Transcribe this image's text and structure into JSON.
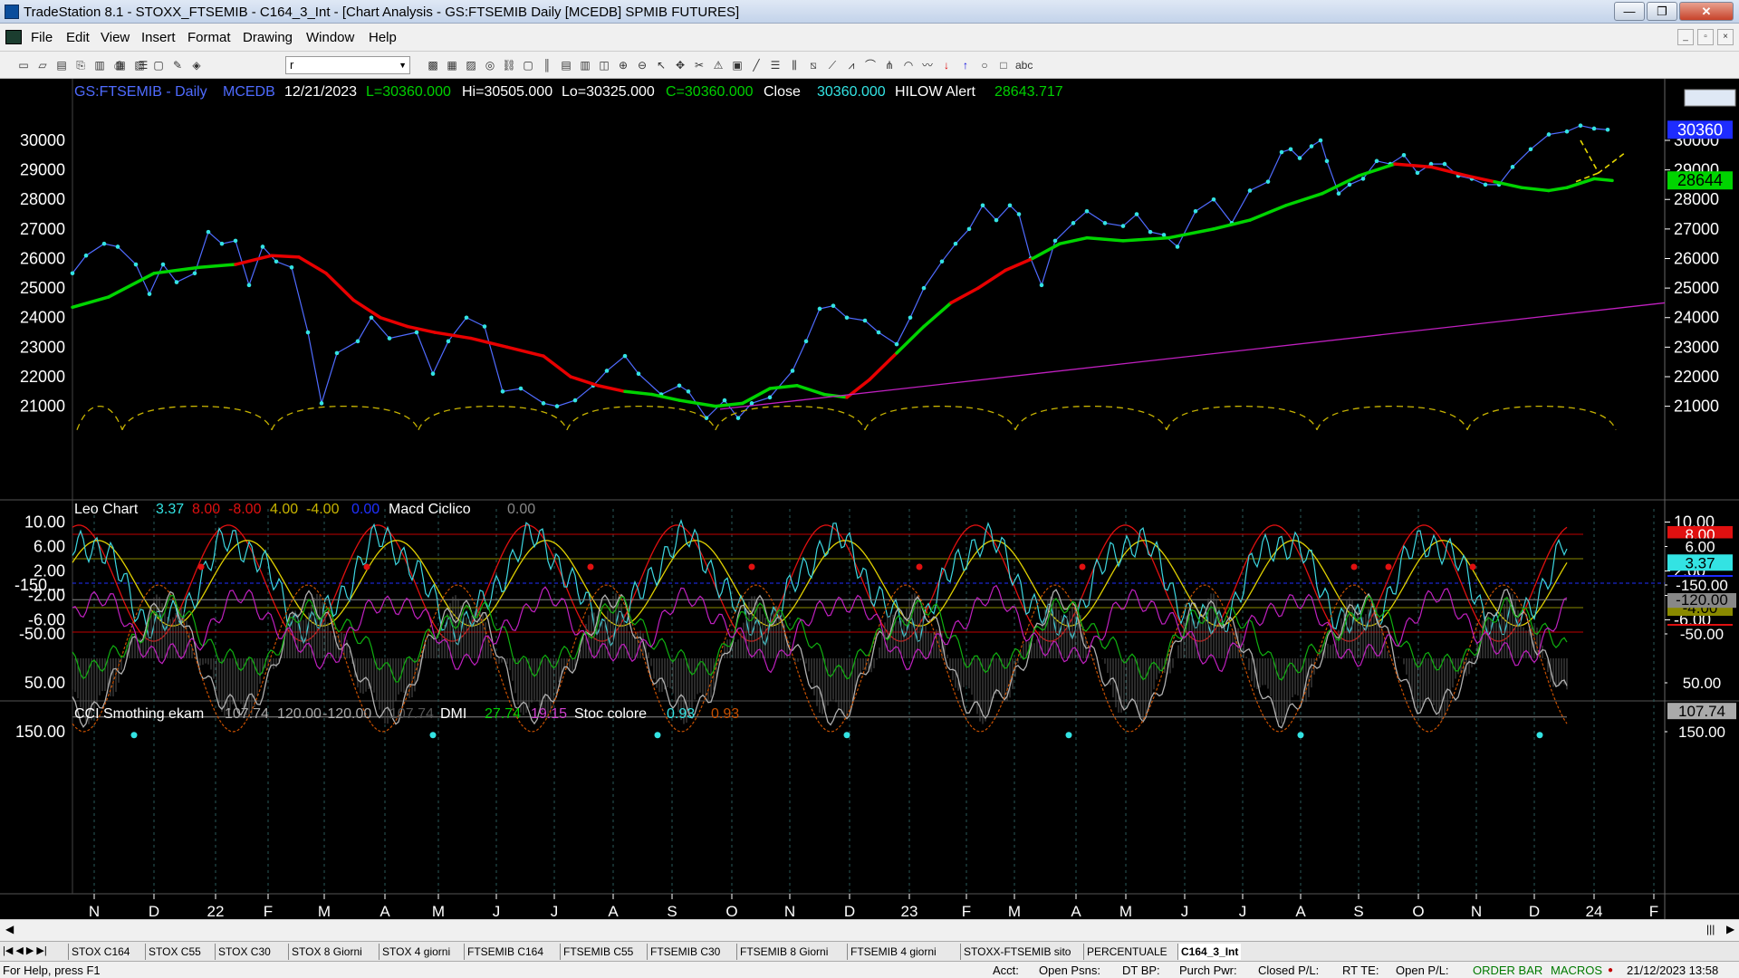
{
  "window": {
    "title": "TradeStation 8.1 - STOXX_FTSEMIB - C164_3_Int - [Chart Analysis - GS:FTSEMIB  Daily  [MCEDB] SPMIB FUTURES]",
    "min_glyph": "—",
    "max_glyph": "❐",
    "close_glyph": "✕"
  },
  "menu": {
    "items": [
      "File",
      "Edit",
      "View",
      "Insert",
      "Format",
      "Drawing",
      "Window",
      "Help"
    ],
    "mdi_buttons": [
      "_",
      "▫",
      "×"
    ]
  },
  "toolbar": {
    "symbol_value": "r",
    "icons": [
      "new-icon",
      "open-icon",
      "save-icon",
      "copy-icon",
      "print-icon",
      "printer-icon",
      "insert-icon",
      "format-icon",
      "lock-icon",
      "draw-icon",
      "palette-icon",
      "symbol-list-icon",
      "window-icon",
      "tile-icon",
      "chart-icon",
      "radar-icon",
      "link-icon",
      "page-icon",
      "bars-icon",
      "data-icon",
      "window2-icon",
      "indicator-icon",
      "zoom-in-icon",
      "zoom-out-icon",
      "pointer-icon",
      "hand-icon",
      "tools-icon",
      "alert-icon",
      "macro-icon",
      "trendline-icon",
      "hline-icon",
      "vline-icon",
      "channel-icon",
      "fib-icon",
      "gann-icon",
      "arc-icon",
      "pitchfork-icon",
      "cycle-icon",
      "freehand-icon",
      "arrow-down-icon",
      "arrow-up-icon",
      "ellipse-icon",
      "rectangle-icon",
      "text-icon"
    ]
  },
  "panel1": {
    "symbol": "GS:FTSEMIB - Daily",
    "datafeed": "MCEDB",
    "date": "12/21/2023",
    "last": "L=30360.000",
    "hi": "Hi=30505.000",
    "lo": "Lo=30325.000",
    "close_eq": "C=30360.000",
    "close_label": "Close",
    "close_value": "30360.000",
    "alert_label": "HILOW Alert",
    "alert_value": "28643.717",
    "axis_ticks": [
      "30000",
      "29000",
      "28000",
      "27000",
      "26000",
      "25000",
      "24000",
      "23000",
      "22000",
      "21000"
    ],
    "tag_close": "30360",
    "tag_alert": "28644"
  },
  "panel2": {
    "name": "Leo Chart",
    "v1": "3.37",
    "v2": "8.00",
    "v3": "-8.00",
    "v4": "4.00",
    "v5": "-4.00",
    "v6": "0.00",
    "name2": "Macd Ciclico",
    "v7": "0.00",
    "axis_ticks": [
      "10.00",
      "6.00",
      "2.00",
      "-2.00",
      "-6.00"
    ],
    "tags": [
      "8.00",
      "6.00",
      "3.37",
      "0.00",
      "-4.00",
      "-8.00"
    ]
  },
  "panel3": {
    "name": "CCI Smothing ekam",
    "v1": "107.74",
    "v2": "120.00",
    "v3": "-120.00",
    "v4": "107.74",
    "name2": "DMI",
    "v5": "27.74",
    "v6": "19.15",
    "name3": "Stoc colore",
    "v7": "0.93",
    "v8": "0.93",
    "axis_ticks": [
      "150.00",
      "50.00",
      "-50.00",
      "-150...."
    ],
    "tags": [
      "150.00",
      "107.74",
      "50.00",
      "-50.00",
      "-120.00",
      "-150.00"
    ]
  },
  "time_axis": [
    "N",
    "D",
    "22",
    "F",
    "M",
    "A",
    "M",
    "J",
    "J",
    "A",
    "S",
    "O",
    "N",
    "D",
    "23",
    "F",
    "M",
    "A",
    "M",
    "J",
    "J",
    "A",
    "S",
    "O",
    "N",
    "D",
    "24",
    "F"
  ],
  "tabs": [
    "STOX C164",
    "STOX C55",
    "STOX  C30",
    "STOX  8 Giorni",
    "STOX 4 giorni",
    "FTSEMIB C164",
    "FTSEMIB C55",
    "FTSEMIB C30",
    "FTSEMIB  8 Giorni",
    "FTSEMIB  4 giorni",
    "STOXX-FTSEMIB sito",
    "PERCENTUALE",
    "C164_3_Int"
  ],
  "active_tab": "C164_3_Int",
  "status": {
    "help": "For Help, press F1",
    "acct": "Acct:",
    "open_psns": "Open Psns:",
    "dt_bp": "DT BP:",
    "purch_pwr": "Purch Pwr:",
    "closed_pl": "Closed P/L:",
    "rt_te": "RT TE:",
    "open_pl": "Open P/L:",
    "order_bar": "ORDER BAR",
    "macros": "MACROS",
    "datetime": "21/12/2023 13:58"
  },
  "colors": {
    "background": "#000000",
    "price_line": "#4f6bff",
    "price_dots": "#33e3e3",
    "ma_up": "#00d400",
    "ma_down": "#e80000",
    "trendline": "#c020c0",
    "cycle_arcs": "#c8b400",
    "leo_cyan": "#3cd6e0",
    "leo_red": "#e01010",
    "leo_yellow": "#e0d000",
    "cci_gray": "#b0b0b0",
    "dmi_green": "#10b010",
    "dmi_magenta": "#c020c0",
    "stoc_orange": "#c85000",
    "status_green": "#007a00"
  }
}
